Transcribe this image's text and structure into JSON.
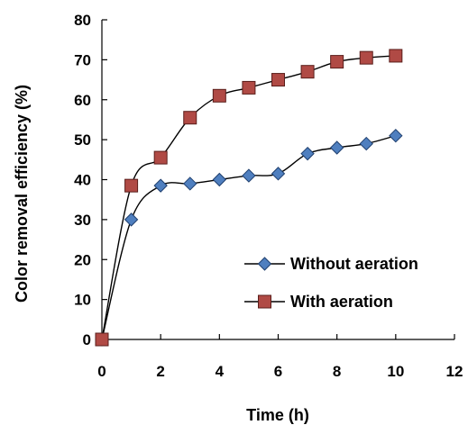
{
  "chart_data": {
    "type": "line",
    "xlabel": "Time (h)",
    "ylabel": "Color removal efficiency (%)",
    "xlim": [
      0,
      12
    ],
    "ylim": [
      0,
      80
    ],
    "xticks": [
      0,
      2,
      4,
      6,
      8,
      10,
      12
    ],
    "yticks": [
      0,
      10,
      20,
      30,
      40,
      50,
      60,
      70,
      80
    ],
    "grid": false,
    "legend_position": "bottom-right",
    "series": [
      {
        "name": "Without aeration",
        "marker": "diamond",
        "color": "#4F7FBF",
        "x": [
          0,
          1,
          2,
          3,
          4,
          5,
          6,
          7,
          8,
          9,
          10
        ],
        "values": [
          0,
          30,
          38.5,
          39,
          40,
          41,
          41.5,
          46.5,
          48,
          49,
          51
        ]
      },
      {
        "name": "With aeration",
        "marker": "square",
        "color": "#B04A45",
        "x": [
          0,
          1,
          2,
          3,
          4,
          5,
          6,
          7,
          8,
          9,
          10
        ],
        "values": [
          0,
          38.5,
          45.5,
          55.5,
          61,
          63,
          65,
          67,
          69.5,
          70.5,
          71
        ]
      }
    ]
  }
}
